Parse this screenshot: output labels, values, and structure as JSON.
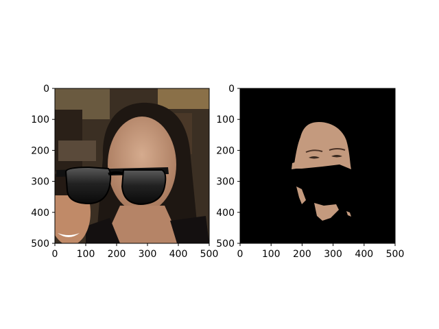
{
  "chart_data": [
    {
      "type": "image",
      "content": "photo of a woman's face with black sunglasses overlaid, a second smiling face at lower left",
      "xlim": [
        0,
        500
      ],
      "ylim": [
        500,
        0
      ],
      "xticks": [
        0,
        100,
        200,
        300,
        400,
        500
      ],
      "yticks": [
        0,
        100,
        200,
        300,
        400,
        500
      ],
      "xtick_labels": [
        "0",
        "100",
        "200",
        "300",
        "400",
        "500"
      ],
      "ytick_labels": [
        "0",
        "100",
        "200",
        "300",
        "400",
        "500"
      ],
      "grid": false,
      "colors": {
        "background": "#3a2e22",
        "skin": "#c49a7e",
        "hair": "#1e1712",
        "sunglasses": "#141414"
      }
    },
    {
      "type": "image",
      "content": "segmentation mask: black background showing only skin regions of the face (forehead/eyes, chin, neck edges)",
      "xlim": [
        0,
        500
      ],
      "ylim": [
        500,
        0
      ],
      "xticks": [
        0,
        100,
        200,
        300,
        400,
        500
      ],
      "yticks": [
        0,
        100,
        200,
        300,
        400,
        500
      ],
      "xtick_labels": [
        "0",
        "100",
        "200",
        "300",
        "400",
        "500"
      ],
      "ytick_labels": [
        "0",
        "100",
        "200",
        "300",
        "400",
        "500"
      ],
      "grid": false,
      "colors": {
        "background": "#000000",
        "skin": "#c49a7e"
      }
    }
  ]
}
